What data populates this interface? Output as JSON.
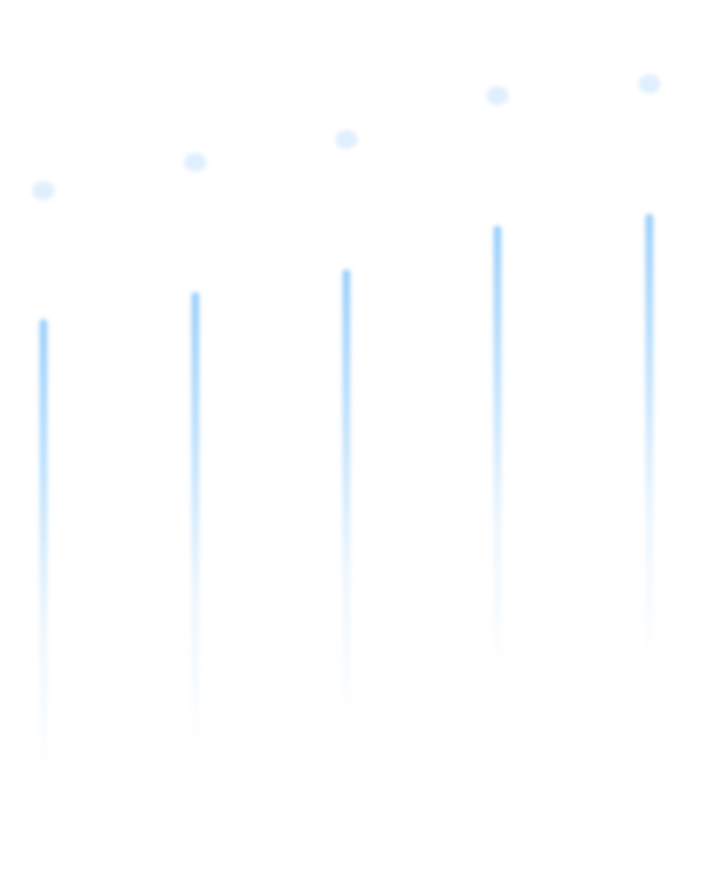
{
  "scene": {
    "beam_count": 5,
    "colors": {
      "background": "#ffffff",
      "beam": "#96cdfa",
      "dot": "#d6eafc",
      "fade": "#ebeef4"
    },
    "beams": [
      {
        "name": "beam-1"
      },
      {
        "name": "beam-2"
      },
      {
        "name": "beam-3"
      },
      {
        "name": "beam-4"
      },
      {
        "name": "beam-5"
      }
    ]
  }
}
